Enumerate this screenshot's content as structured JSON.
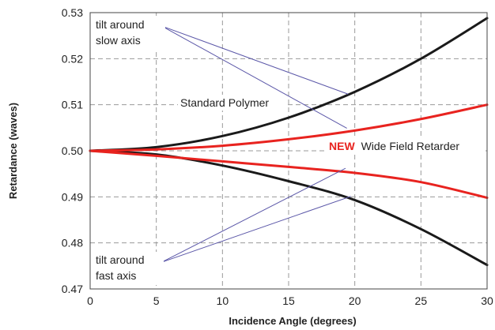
{
  "colors": {
    "standard_polymer": "#1a1a1a",
    "new_retarder": "#e8231f",
    "pointer_lines": "#5b57a8",
    "grid": "#9a9a9a",
    "frame": "#444444"
  },
  "chart_data": {
    "type": "line",
    "title": "",
    "xlabel": "Incidence Angle (degrees)",
    "ylabel": "Retardance (waves)",
    "xlim": [
      0,
      30
    ],
    "ylim": [
      0.47,
      0.53
    ],
    "x_ticks": [
      0,
      5,
      10,
      15,
      20,
      25,
      30
    ],
    "y_ticks": [
      0.47,
      0.48,
      0.49,
      0.5,
      0.51,
      0.52,
      0.53
    ],
    "x_tick_labels": [
      "0",
      "5",
      "10",
      "15",
      "20",
      "25",
      "30"
    ],
    "y_tick_labels": [
      "0.47",
      "0.48",
      "0.49",
      "0.50",
      "0.51",
      "0.52",
      "0.53"
    ],
    "grid": true,
    "x": [
      0,
      5,
      10,
      15,
      20,
      25,
      30
    ],
    "series": [
      {
        "name": "Standard Polymer",
        "group": "standard",
        "axis": "slow",
        "color": "#1a1a1a",
        "values": [
          0.5,
          0.5008,
          0.5032,
          0.5072,
          0.5128,
          0.52,
          0.5288
        ]
      },
      {
        "name": "Standard Polymer",
        "group": "standard",
        "axis": "fast",
        "color": "#1a1a1a",
        "values": [
          0.5,
          0.4992,
          0.4968,
          0.4934,
          0.4893,
          0.483,
          0.4752
        ]
      },
      {
        "name": "NEW Wide Field Retarder",
        "group": "new",
        "axis": "slow",
        "color": "#e8231f",
        "values": [
          0.5,
          0.5003,
          0.5011,
          0.5025,
          0.5044,
          0.5069,
          0.51
        ]
      },
      {
        "name": "NEW Wide Field Retarder",
        "group": "new",
        "axis": "fast",
        "color": "#e8231f",
        "values": [
          0.5,
          0.4989,
          0.4977,
          0.4965,
          0.4952,
          0.4932,
          0.4898
        ]
      }
    ],
    "annotations": {
      "standard_polymer": "Standard Polymer",
      "new_accent": "NEW",
      "new_rest": "Wide Field Retarder",
      "slow_line1": "tilt around",
      "slow_line2": "slow axis",
      "fast_line1": "tilt around",
      "fast_line2": "fast axis"
    },
    "pointers": [
      {
        "from": [
          5.4,
          0.5271
        ],
        "to": [
          19.5,
          0.5123
        ]
      },
      {
        "from": [
          5.4,
          0.5271
        ],
        "to": [
          19.4,
          0.5049
        ]
      },
      {
        "from": [
          5.4,
          0.4758
        ],
        "to": [
          19.3,
          0.4962
        ]
      },
      {
        "from": [
          5.4,
          0.4758
        ],
        "to": [
          19.7,
          0.4901
        ]
      }
    ]
  }
}
